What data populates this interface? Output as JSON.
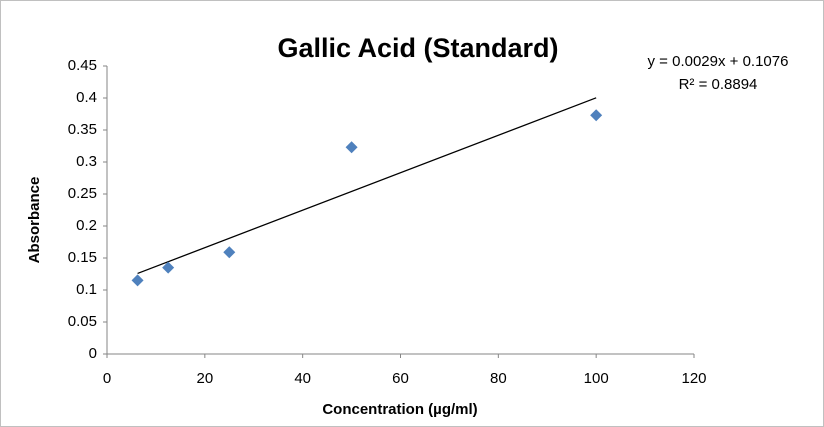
{
  "chart_data": {
    "type": "scatter",
    "title": "Gallic Acid (Standard)",
    "x_label": "Concentration (µg/ml)",
    "y_label": "Absorbance",
    "series": [
      {
        "name": "Absorbance",
        "color": "#4f81bd",
        "x": [
          6.25,
          12.5,
          25,
          50,
          100
        ],
        "values": [
          0.115,
          0.135,
          0.159,
          0.323,
          0.373
        ]
      }
    ],
    "trendline": {
      "type": "linear",
      "color": "#000000",
      "equation": "y = 0.0029x + 0.1076",
      "r_squared": "R² = 0.8894"
    },
    "xlim": [
      0,
      120
    ],
    "xticks": [
      0,
      20,
      40,
      60,
      80,
      100,
      120
    ],
    "ylim": [
      0,
      0.45
    ],
    "yticks": [
      0,
      0.05,
      0.1,
      0.15,
      0.2,
      0.25,
      0.3,
      0.35,
      0.4,
      0.45
    ],
    "grid": false
  }
}
